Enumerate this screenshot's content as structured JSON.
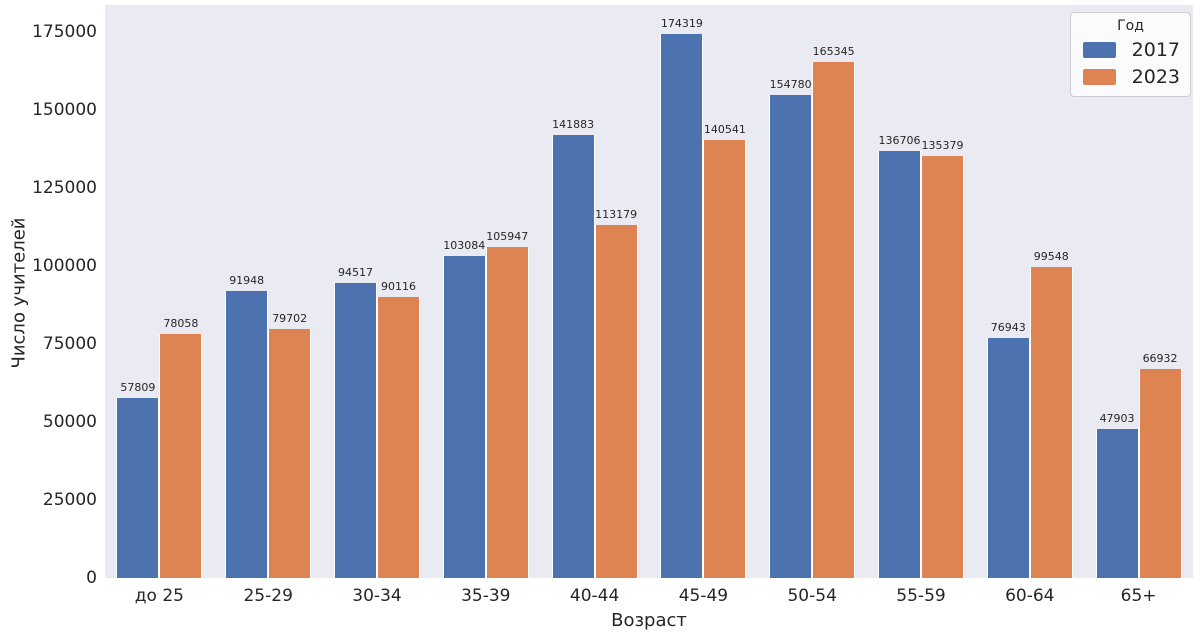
{
  "chart_data": {
    "type": "bar",
    "title": "",
    "xlabel": "Возраст",
    "ylabel": "Число учителей",
    "categories": [
      "до 25",
      "25-29",
      "30-34",
      "35-39",
      "40-44",
      "45-49",
      "50-54",
      "55-59",
      "60-64",
      "65+"
    ],
    "series": [
      {
        "name": "2017",
        "color": "#4c72b0",
        "values": [
          57809,
          91948,
          94517,
          103084,
          141883,
          174319,
          154780,
          136706,
          76943,
          47903
        ]
      },
      {
        "name": "2023",
        "color": "#dd8452",
        "values": [
          78058,
          79702,
          90116,
          105947,
          113179,
          140541,
          165345,
          135379,
          99548,
          66932
        ]
      }
    ],
    "bar_labels": true,
    "legend": {
      "title": "Год",
      "position": "upper-right"
    },
    "y_ticks": [
      0,
      25000,
      50000,
      75000,
      100000,
      125000,
      150000,
      175000
    ],
    "ylim": [
      0,
      183650
    ],
    "grid": false,
    "plot_bg": "#eaeaf2",
    "text_color": "#262626"
  }
}
